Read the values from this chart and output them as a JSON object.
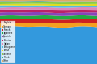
{
  "n_points": 150,
  "layers": [
    {
      "color": "#3399dd",
      "label": "English",
      "base": 0.52,
      "amp": 0.04
    },
    {
      "color": "#f4a020",
      "label": "German",
      "base": 0.055,
      "amp": 0.012
    },
    {
      "color": "#cc2222",
      "label": "French",
      "base": 0.055,
      "amp": 0.012
    },
    {
      "color": "#22aa44",
      "label": "Japanese",
      "base": 0.048,
      "amp": 0.01
    },
    {
      "color": "#8844bb",
      "label": "Spanish",
      "base": 0.048,
      "amp": 0.01
    },
    {
      "color": "#bb2266",
      "label": "Russian",
      "base": 0.038,
      "amp": 0.009
    },
    {
      "color": "#dd88bb",
      "label": "Italian",
      "base": 0.032,
      "amp": 0.007
    },
    {
      "color": "#55bbdd",
      "label": "Portuguese",
      "base": 0.028,
      "amp": 0.006
    },
    {
      "color": "#dddd22",
      "label": "Polish",
      "base": 0.022,
      "amp": 0.005
    },
    {
      "color": "#88cc44",
      "label": "Chinese",
      "base": 0.022,
      "amp": 0.005
    },
    {
      "color": "#33aa99",
      "label": "Dutch",
      "base": 0.018,
      "amp": 0.004
    },
    {
      "color": "#ddaa66",
      "label": "Other",
      "base": 0.016,
      "amp": 0.004
    }
  ],
  "background_color": "#f5f5f5",
  "seed": 7
}
